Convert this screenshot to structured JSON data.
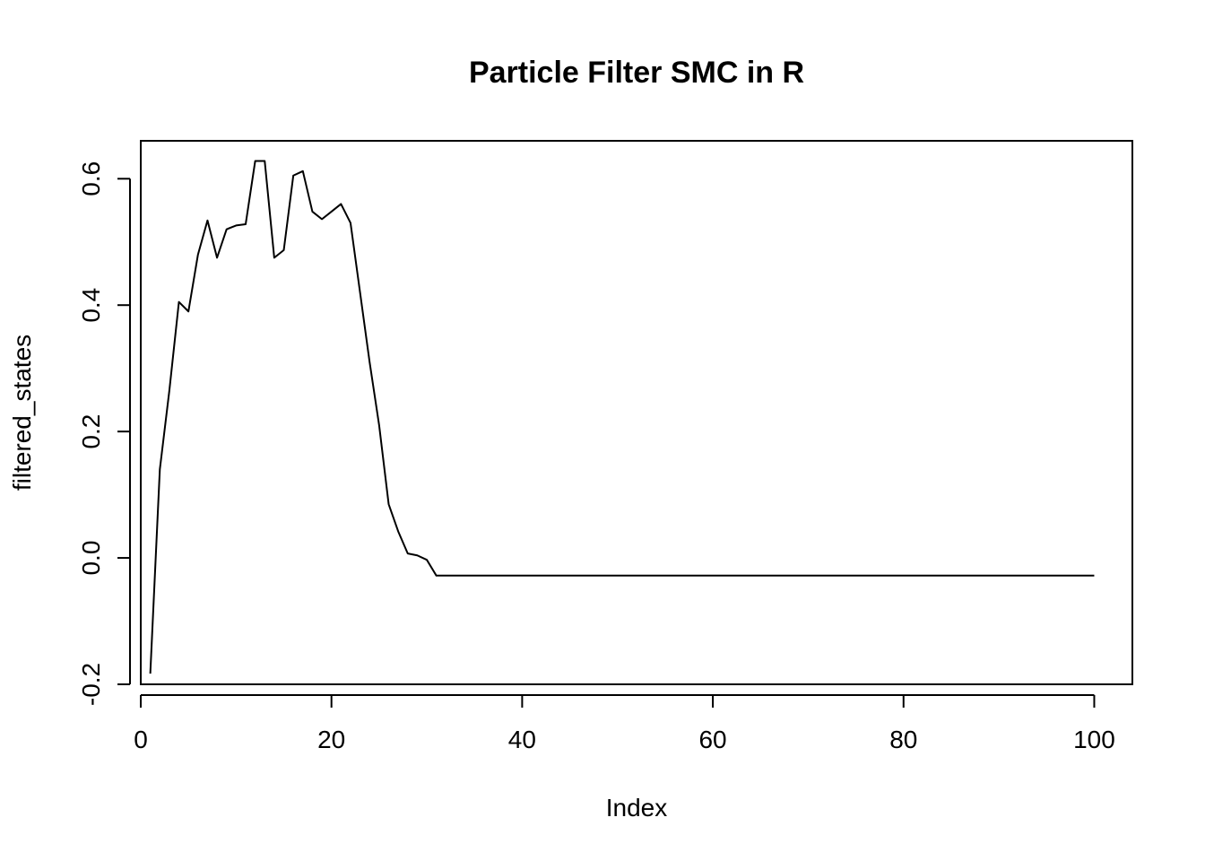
{
  "chart_data": {
    "type": "line",
    "title": "Particle Filter SMC in R",
    "xlabel": "Index",
    "ylabel": "filtered_states",
    "xlim": [
      0,
      104
    ],
    "ylim": [
      -0.2,
      0.66
    ],
    "x_ticks": [
      0,
      20,
      40,
      60,
      80,
      100
    ],
    "x_tick_labels": [
      "0",
      "20",
      "40",
      "60",
      "80",
      "100"
    ],
    "y_ticks": [
      -0.2,
      0.0,
      0.2,
      0.4,
      0.6
    ],
    "y_tick_labels": [
      "-0.2",
      "0.0",
      "0.2",
      "0.4",
      "0.6"
    ],
    "grid": false,
    "series": [
      {
        "x": [
          1,
          2,
          3,
          4,
          5,
          6,
          7,
          8,
          9,
          10,
          11,
          12,
          13,
          14,
          15,
          16,
          17,
          18,
          19,
          20,
          21,
          22,
          23,
          24,
          25,
          26,
          27,
          28,
          29,
          30,
          31,
          32,
          33,
          34,
          35,
          36,
          37,
          38,
          39,
          40,
          41,
          42,
          43,
          44,
          45,
          46,
          47,
          48,
          49,
          50,
          51,
          52,
          53,
          54,
          55,
          56,
          57,
          58,
          59,
          60,
          61,
          62,
          63,
          64,
          65,
          66,
          67,
          68,
          69,
          70,
          71,
          72,
          73,
          74,
          75,
          76,
          77,
          78,
          79,
          80,
          81,
          82,
          83,
          84,
          85,
          86,
          87,
          88,
          89,
          90,
          91,
          92,
          93,
          94,
          95,
          96,
          97,
          98,
          99,
          100
        ],
        "values": [
          -0.183,
          0.14,
          0.265,
          0.405,
          0.39,
          0.48,
          0.534,
          0.475,
          0.52,
          0.526,
          0.528,
          0.628,
          0.628,
          0.475,
          0.487,
          0.605,
          0.612,
          0.548,
          0.536,
          0.548,
          0.56,
          0.53,
          0.42,
          0.31,
          0.21,
          0.085,
          0.042,
          0.007,
          0.004,
          -0.003,
          -0.028,
          -0.028,
          -0.028,
          -0.028,
          -0.028,
          -0.028,
          -0.028,
          -0.028,
          -0.028,
          -0.028,
          -0.028,
          -0.028,
          -0.028,
          -0.028,
          -0.028,
          -0.028,
          -0.028,
          -0.028,
          -0.028,
          -0.028,
          -0.028,
          -0.028,
          -0.028,
          -0.028,
          -0.028,
          -0.028,
          -0.028,
          -0.028,
          -0.028,
          -0.028,
          -0.028,
          -0.028,
          -0.028,
          -0.028,
          -0.028,
          -0.028,
          -0.028,
          -0.028,
          -0.028,
          -0.028,
          -0.028,
          -0.028,
          -0.028,
          -0.028,
          -0.028,
          -0.028,
          -0.028,
          -0.028,
          -0.028,
          -0.028,
          -0.028,
          -0.028,
          -0.028,
          -0.028,
          -0.028,
          -0.028,
          -0.028,
          -0.028,
          -0.028,
          -0.028,
          -0.028,
          -0.028,
          -0.028,
          -0.028,
          -0.028,
          -0.028,
          -0.028,
          -0.028,
          -0.028,
          -0.028
        ]
      }
    ]
  }
}
